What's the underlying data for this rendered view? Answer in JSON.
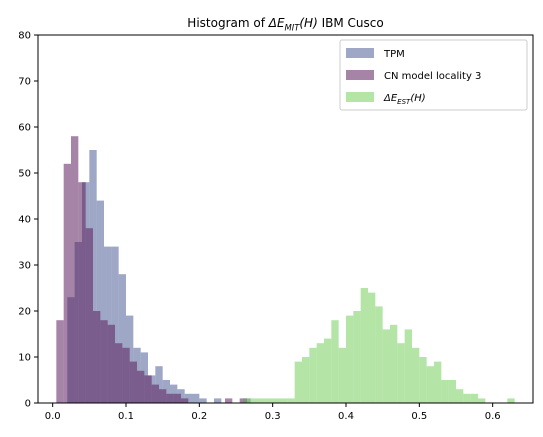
{
  "chart_data": {
    "type": "bar",
    "title": "Histogram of ",
    "title_math": "ΔE_MIT(H)",
    "title_suffix": " IBM Cusco",
    "xlim": [
      -0.02,
      0.655
    ],
    "ylim": [
      0,
      80
    ],
    "xticks": [
      0.0,
      0.1,
      0.2,
      0.3,
      0.4,
      0.5,
      0.6
    ],
    "xtick_labels": [
      "0.0",
      "0.1",
      "0.2",
      "0.3",
      "0.4",
      "0.5",
      "0.6"
    ],
    "yticks": [
      0,
      10,
      20,
      30,
      40,
      50,
      60,
      70,
      80
    ],
    "ytick_labels": [
      "0",
      "10",
      "20",
      "30",
      "40",
      "50",
      "60",
      "70",
      "80"
    ],
    "legend_position": "top-right",
    "series": [
      {
        "name": "TPM",
        "color": "#4e5f96",
        "opacity": 0.55,
        "bins": [
          [
            0.005,
            0.0
          ],
          [
            0.01,
            0.0
          ],
          [
            0.02,
            23
          ],
          [
            0.03,
            35
          ],
          [
            0.04,
            48
          ],
          [
            0.05,
            55
          ],
          [
            0.06,
            44
          ],
          [
            0.07,
            34
          ],
          [
            0.08,
            34
          ],
          [
            0.09,
            28
          ],
          [
            0.1,
            19
          ],
          [
            0.11,
            12
          ],
          [
            0.12,
            11
          ],
          [
            0.13,
            6
          ],
          [
            0.14,
            8
          ],
          [
            0.15,
            5
          ],
          [
            0.16,
            4
          ],
          [
            0.17,
            3
          ],
          [
            0.18,
            2
          ],
          [
            0.19,
            2
          ],
          [
            0.2,
            1
          ],
          [
            0.21,
            0
          ],
          [
            0.22,
            1
          ],
          [
            0.26,
            1
          ]
        ],
        "bin_width": 0.01
      },
      {
        "name": "CN model locality 3",
        "color": "#5c1f5e",
        "opacity": 0.55,
        "bins": [
          [
            0.005,
            18
          ],
          [
            0.015,
            52
          ],
          [
            0.025,
            58
          ],
          [
            0.035,
            48
          ],
          [
            0.045,
            38
          ],
          [
            0.055,
            20
          ],
          [
            0.065,
            18
          ],
          [
            0.075,
            17
          ],
          [
            0.085,
            13
          ],
          [
            0.095,
            12
          ],
          [
            0.105,
            9
          ],
          [
            0.115,
            7
          ],
          [
            0.125,
            6
          ],
          [
            0.135,
            4
          ],
          [
            0.145,
            3
          ],
          [
            0.155,
            2
          ],
          [
            0.165,
            2
          ],
          [
            0.175,
            1
          ],
          [
            0.235,
            1
          ],
          [
            0.255,
            1
          ]
        ],
        "bin_width": 0.01
      },
      {
        "name": "ΔE_EST(H)",
        "color": "#76cf5e",
        "opacity": 0.55,
        "bins": [
          [
            0.26,
            1
          ],
          [
            0.27,
            1
          ],
          [
            0.28,
            1
          ],
          [
            0.29,
            1
          ],
          [
            0.3,
            1
          ],
          [
            0.31,
            1
          ],
          [
            0.32,
            1
          ],
          [
            0.33,
            9
          ],
          [
            0.34,
            10
          ],
          [
            0.35,
            12
          ],
          [
            0.36,
            13
          ],
          [
            0.37,
            14
          ],
          [
            0.38,
            18
          ],
          [
            0.39,
            12
          ],
          [
            0.4,
            19
          ],
          [
            0.41,
            20
          ],
          [
            0.42,
            25
          ],
          [
            0.43,
            24
          ],
          [
            0.44,
            21
          ],
          [
            0.45,
            16
          ],
          [
            0.46,
            17
          ],
          [
            0.47,
            13
          ],
          [
            0.48,
            16
          ],
          [
            0.49,
            12
          ],
          [
            0.5,
            10
          ],
          [
            0.51,
            8
          ],
          [
            0.52,
            9
          ],
          [
            0.53,
            5
          ],
          [
            0.54,
            5
          ],
          [
            0.55,
            3
          ],
          [
            0.56,
            2
          ],
          [
            0.57,
            2
          ],
          [
            0.58,
            1
          ],
          [
            0.62,
            1
          ]
        ],
        "bin_width": 0.01
      }
    ]
  }
}
